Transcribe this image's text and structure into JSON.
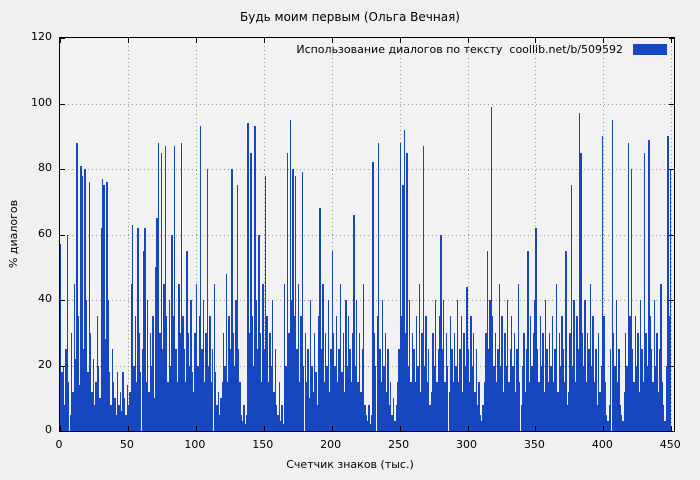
{
  "chart_data": {
    "type": "bar",
    "title": "Будь моим первым (Ольга Вечная)",
    "legend": "Использование диалогов по тексту  coollib.net/b/509592",
    "xlabel": "Счетчик знаков (тыс.)",
    "ylabel": "% диалогов",
    "xlim": [
      0,
      452
    ],
    "ylim": [
      0,
      120
    ],
    "x_tick_step": 50,
    "y_tick_step": 20,
    "x_start": 0,
    "x_step": 1,
    "bar_color": "#1747c0",
    "grid": true,
    "legend_position": "top-right",
    "values": [
      57,
      18,
      20,
      8,
      25,
      60,
      15,
      5,
      30,
      12,
      45,
      22,
      88,
      35,
      14,
      81,
      78,
      25,
      80,
      40,
      18,
      76,
      30,
      12,
      22,
      8,
      15,
      35,
      20,
      10,
      62,
      77,
      75,
      28,
      76,
      40,
      18,
      8,
      25,
      15,
      10,
      5,
      18,
      8,
      12,
      6,
      18,
      10,
      5,
      14,
      8,
      12,
      45,
      63,
      20,
      35,
      15,
      62,
      30,
      18,
      25,
      55,
      62,
      15,
      40,
      12,
      30,
      20,
      35,
      10,
      50,
      65,
      88,
      30,
      85,
      25,
      45,
      87,
      35,
      15,
      40,
      20,
      60,
      35,
      87,
      25,
      15,
      45,
      30,
      88,
      35,
      25,
      15,
      55,
      30,
      20,
      40,
      18,
      12,
      30,
      45,
      20,
      35,
      93,
      25,
      40,
      15,
      30,
      80,
      20,
      35,
      15,
      25,
      45,
      18,
      8,
      12,
      5,
      10,
      15,
      30,
      20,
      48,
      15,
      35,
      25,
      80,
      30,
      20,
      40,
      75,
      25,
      15,
      5,
      3,
      8,
      2,
      5,
      94,
      30,
      85,
      35,
      20,
      93,
      40,
      25,
      60,
      30,
      15,
      45,
      25,
      78,
      35,
      15,
      30,
      20,
      40,
      12,
      25,
      8,
      5,
      15,
      3,
      8,
      2,
      45,
      20,
      85,
      30,
      95,
      40,
      80,
      35,
      78,
      25,
      45,
      15,
      35,
      79,
      20,
      30,
      15,
      25,
      10,
      40,
      20,
      12,
      30,
      18,
      8,
      35,
      68,
      25,
      45,
      15,
      30,
      20,
      40,
      12,
      25,
      55,
      30,
      20,
      35,
      15,
      25,
      45,
      18,
      30,
      12,
      40,
      20,
      35,
      25,
      15,
      30,
      66,
      20,
      40,
      15,
      30,
      12,
      25,
      45,
      8,
      5,
      3,
      8,
      2,
      5,
      82,
      30,
      20,
      35,
      88,
      25,
      15,
      40,
      20,
      30,
      12,
      25,
      8,
      15,
      5,
      10,
      3,
      8,
      15,
      25,
      88,
      35,
      75,
      92,
      30,
      85,
      20,
      40,
      15,
      30,
      25,
      15,
      35,
      20,
      45,
      12,
      30,
      87,
      20,
      35,
      15,
      25,
      8,
      12,
      30,
      20,
      40,
      15,
      25,
      35,
      60,
      25,
      40,
      15,
      30,
      20,
      12,
      35,
      25,
      15,
      30,
      20,
      40,
      15,
      25,
      35,
      12,
      30,
      20,
      44,
      25,
      15,
      35,
      20,
      30,
      12,
      25,
      8,
      15,
      5,
      3,
      8,
      15,
      30,
      55,
      25,
      40,
      99,
      35,
      20,
      30,
      15,
      25,
      45,
      20,
      35,
      12,
      30,
      20,
      40,
      15,
      25,
      35,
      20,
      30,
      12,
      25,
      45,
      15,
      8,
      20,
      30,
      12,
      25,
      55,
      15,
      35,
      20,
      30,
      40,
      62,
      25,
      15,
      35,
      20,
      30,
      12,
      40,
      25,
      15,
      30,
      20,
      35,
      15,
      25,
      45,
      12,
      30,
      20,
      35,
      25,
      15,
      55,
      8,
      12,
      30,
      75,
      20,
      40,
      15,
      35,
      25,
      97,
      85,
      30,
      20,
      40,
      15,
      30,
      25,
      45,
      20,
      35,
      15,
      25,
      8,
      30,
      12,
      20,
      90,
      35,
      15,
      5,
      3,
      8,
      25,
      95,
      30,
      20,
      40,
      15,
      25,
      8,
      5,
      3,
      12,
      30,
      20,
      88,
      35,
      80,
      25,
      15,
      35,
      20,
      30,
      12,
      40,
      25,
      15,
      85,
      30,
      20,
      89,
      35,
      25,
      15,
      40,
      20,
      30,
      12,
      25,
      45,
      15,
      8,
      3,
      20,
      90,
      35,
      80
    ]
  }
}
